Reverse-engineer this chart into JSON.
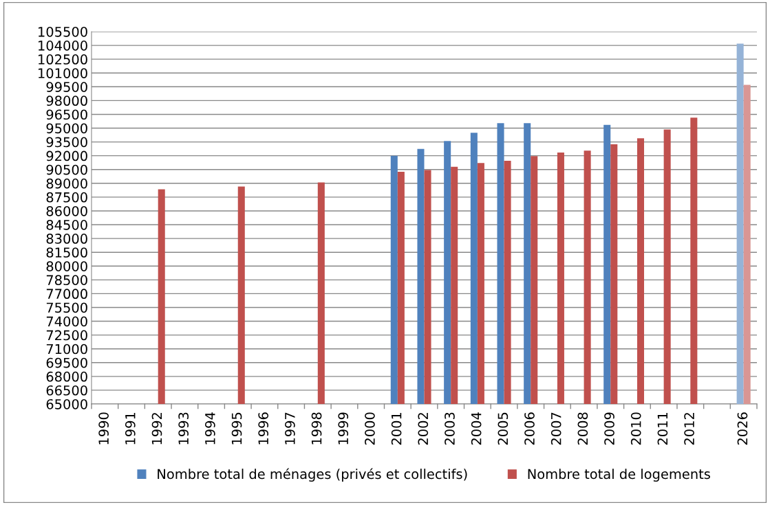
{
  "chart_data": {
    "type": "bar",
    "categories": [
      "1990",
      "1991",
      "1992",
      "1993",
      "1994",
      "1995",
      "1996",
      "1997",
      "1998",
      "1999",
      "2000",
      "2001",
      "2002",
      "2003",
      "2004",
      "2005",
      "2006",
      "2007",
      "2008",
      "2009",
      "2010",
      "2011",
      "2012",
      null,
      "2026"
    ],
    "series": [
      {
        "name": "Nombre total de ménages (privés et collectifs)",
        "color": "#4f81bd",
        "colors": [
          "#4f81bd",
          "#4f81bd",
          "#4f81bd",
          "#4f81bd",
          "#4f81bd",
          "#4f81bd",
          "#4f81bd",
          "#4f81bd",
          "#4f81bd",
          "#4f81bd",
          "#4f81bd",
          "#4f81bd",
          "#4f81bd",
          "#4f81bd",
          "#4f81bd",
          "#4f81bd",
          "#4f81bd",
          "#4f81bd",
          "#4f81bd",
          "#4f81bd",
          "#4f81bd",
          "#4f81bd",
          "#4f81bd",
          "#4f81bd",
          "#95b3d7"
        ],
        "values": [
          null,
          null,
          null,
          null,
          null,
          null,
          null,
          null,
          null,
          null,
          null,
          92000,
          92750,
          93600,
          94500,
          95550,
          95550,
          null,
          null,
          95350,
          null,
          null,
          null,
          null,
          104200
        ]
      },
      {
        "name": "Nombre total de logements",
        "color": "#c0504d",
        "colors": [
          "#c0504d",
          "#c0504d",
          "#c0504d",
          "#c0504d",
          "#c0504d",
          "#c0504d",
          "#c0504d",
          "#c0504d",
          "#c0504d",
          "#c0504d",
          "#c0504d",
          "#c0504d",
          "#c0504d",
          "#c0504d",
          "#c0504d",
          "#c0504d",
          "#c0504d",
          "#c0504d",
          "#c0504d",
          "#c0504d",
          "#c0504d",
          "#c0504d",
          "#c0504d",
          "#c0504d",
          "#d99694"
        ],
        "values": [
          null,
          null,
          88350,
          null,
          null,
          88650,
          null,
          null,
          89100,
          null,
          null,
          90250,
          90450,
          90800,
          91200,
          91450,
          91950,
          92350,
          92550,
          93250,
          93900,
          94850,
          96150,
          null,
          99700
        ]
      }
    ],
    "ylim": [
      65000,
      105500
    ],
    "yticks": [
      65000,
      66500,
      68000,
      69500,
      71000,
      72500,
      74000,
      75500,
      77000,
      78500,
      80000,
      81500,
      83000,
      84500,
      86000,
      87500,
      89000,
      90500,
      92000,
      93500,
      95000,
      96500,
      98000,
      99500,
      101000,
      102500,
      104000,
      105500
    ],
    "grid": "y",
    "legend": "bottom"
  }
}
